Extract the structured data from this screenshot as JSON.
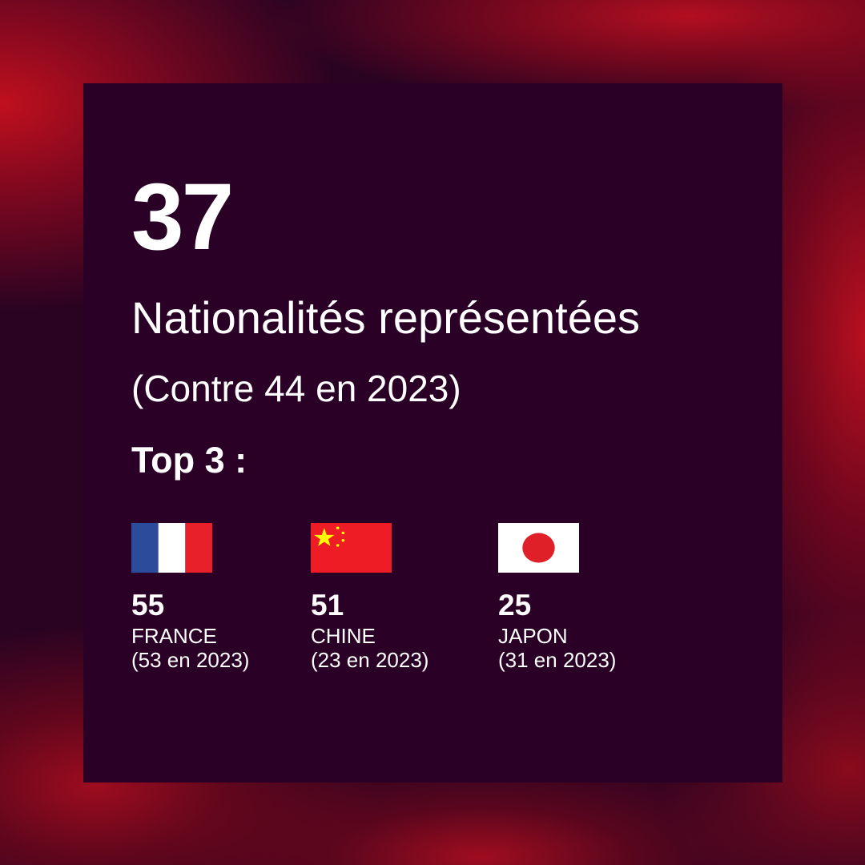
{
  "stat": {
    "value": "37",
    "label": "Nationalités représentées",
    "comparison": "(Contre 44 en 2023)"
  },
  "top_label": "Top 3 :",
  "countries": [
    {
      "value": "55",
      "name": "FRANCE",
      "previous": "(53 en 2023)",
      "flag_icon": "flag-france-icon",
      "colors": [
        "#2b4b9b",
        "#ffffff",
        "#e8202a"
      ]
    },
    {
      "value": "51",
      "name": "CHINE",
      "previous": "(23 en 2023)",
      "flag_icon": "flag-china-icon",
      "colors": [
        "#ee1c25",
        "#ffff00"
      ]
    },
    {
      "value": "25",
      "name": "JAPON",
      "previous": "(31 en 2023)",
      "flag_icon": "flag-japan-icon",
      "colors": [
        "#ffffff",
        "#e02028"
      ]
    }
  ],
  "colors": {
    "card_background": "#2a0026",
    "accent_red": "#c0101e",
    "text": "#ffffff"
  }
}
